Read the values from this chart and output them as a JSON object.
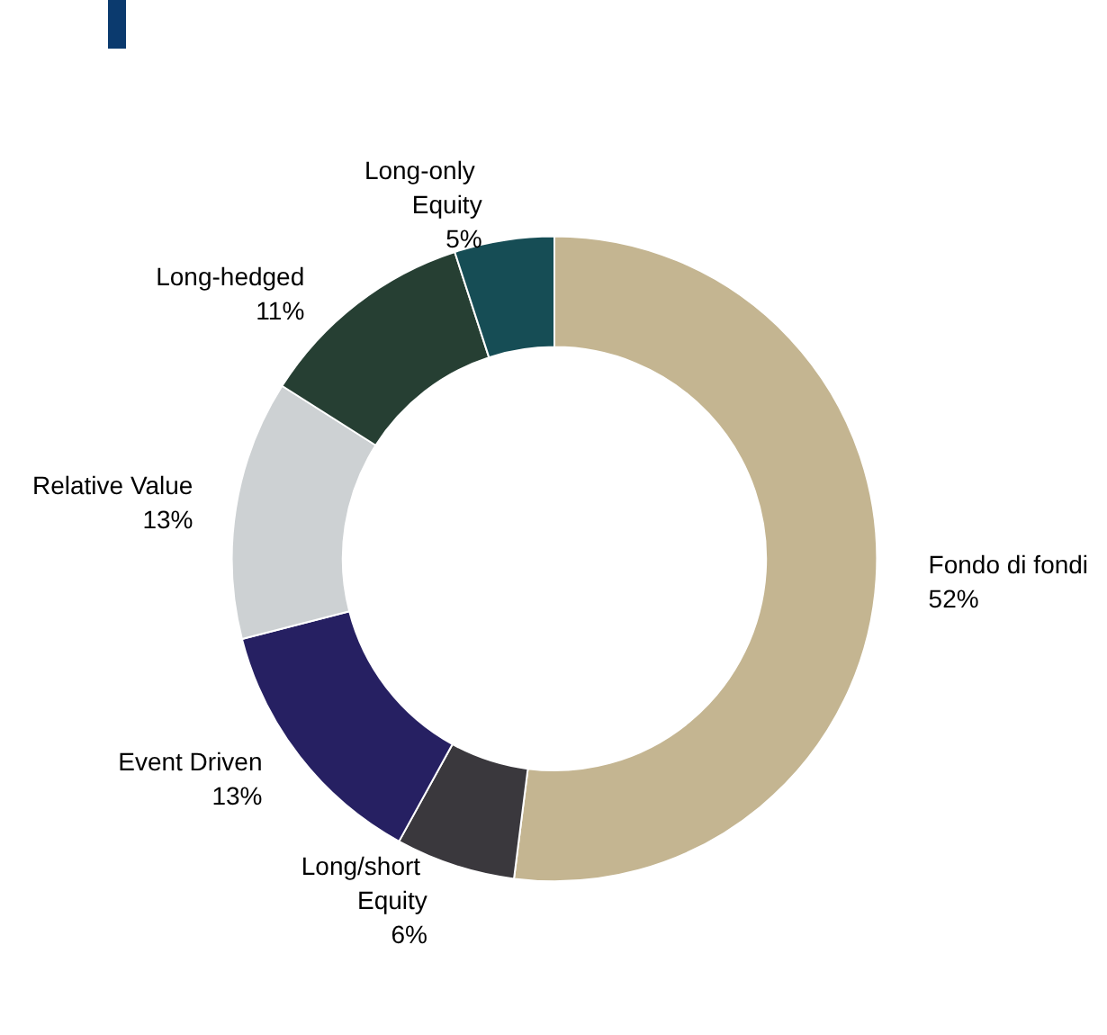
{
  "chart_data": {
    "type": "donut",
    "categories": [
      "Fondo di fondi",
      "Long/short Equity",
      "Event Driven",
      "Relative Value",
      "Long-hedged",
      "Long-only Equity"
    ],
    "values": [
      52,
      6,
      13,
      13,
      11,
      5
    ],
    "colors": [
      "#c4b591",
      "#3a383d",
      "#262062",
      "#cdd1d3",
      "#263f33",
      "#164d55"
    ],
    "value_labels": [
      "52%",
      "6%",
      "13%",
      "13%",
      "11%",
      "5%"
    ],
    "legend": false
  }
}
